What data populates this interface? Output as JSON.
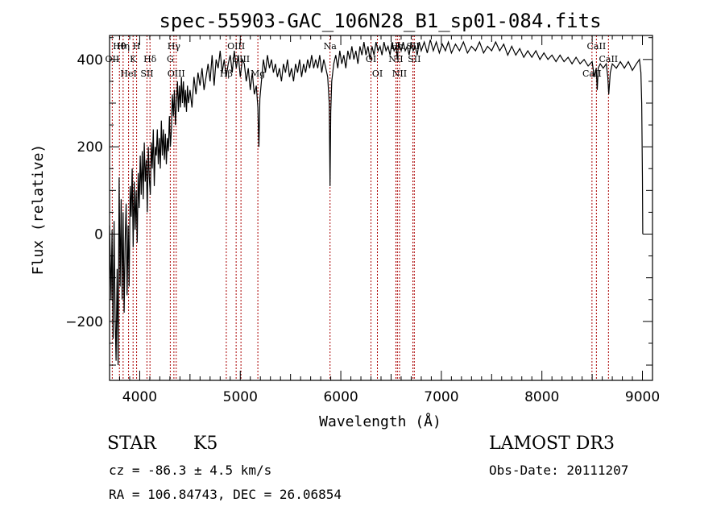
{
  "chart_data": {
    "type": "line",
    "title": "spec-55903-GAC_106N28_B1_sp01-084.fits",
    "xlabel": "Wavelength (Å)",
    "ylabel": "Flux (relative)",
    "xlim": [
      3700,
      9100
    ],
    "ylim": [
      -335,
      455
    ],
    "xticks": [
      4000,
      5000,
      6000,
      7000,
      8000,
      9000
    ],
    "yticks": [
      -200,
      0,
      200,
      400
    ],
    "line_color": "#000000",
    "marker_color": "#aa0000",
    "series": [
      {
        "name": "flux",
        "points": [
          [
            3700,
            20
          ],
          [
            3715,
            -150
          ],
          [
            3725,
            10
          ],
          [
            3735,
            -240
          ],
          [
            3745,
            30
          ],
          [
            3755,
            -190
          ],
          [
            3765,
            -290
          ],
          [
            3775,
            -80
          ],
          [
            3785,
            -300
          ],
          [
            3795,
            130
          ],
          [
            3805,
            -120
          ],
          [
            3815,
            80
          ],
          [
            3825,
            -150
          ],
          [
            3835,
            50
          ],
          [
            3845,
            -180
          ],
          [
            3855,
            -20
          ],
          [
            3865,
            70
          ],
          [
            3875,
            -140
          ],
          [
            3885,
            20
          ],
          [
            3895,
            -120
          ],
          [
            3905,
            110
          ],
          [
            3915,
            40
          ],
          [
            3925,
            150
          ],
          [
            3935,
            -30
          ],
          [
            3945,
            120
          ],
          [
            3955,
            10
          ],
          [
            3965,
            100
          ],
          [
            3975,
            -20
          ],
          [
            3985,
            140
          ],
          [
            3995,
            60
          ],
          [
            4005,
            180
          ],
          [
            4015,
            90
          ],
          [
            4025,
            190
          ],
          [
            4035,
            80
          ],
          [
            4045,
            210
          ],
          [
            4055,
            120
          ],
          [
            4065,
            170
          ],
          [
            4075,
            50
          ],
          [
            4085,
            200
          ],
          [
            4095,
            130
          ],
          [
            4105,
            90
          ],
          [
            4115,
            210
          ],
          [
            4125,
            150
          ],
          [
            4135,
            240
          ],
          [
            4145,
            110
          ],
          [
            4155,
            200
          ],
          [
            4165,
            180
          ],
          [
            4175,
            240
          ],
          [
            4185,
            160
          ],
          [
            4195,
            220
          ],
          [
            4205,
            150
          ],
          [
            4215,
            260
          ],
          [
            4225,
            180
          ],
          [
            4235,
            240
          ],
          [
            4245,
            170
          ],
          [
            4255,
            230
          ],
          [
            4265,
            160
          ],
          [
            4275,
            220
          ],
          [
            4285,
            190
          ],
          [
            4295,
            270
          ],
          [
            4305,
            200
          ],
          [
            4315,
            240
          ],
          [
            4325,
            320
          ],
          [
            4335,
            270
          ],
          [
            4345,
            330
          ],
          [
            4355,
            250
          ],
          [
            4365,
            300
          ],
          [
            4375,
            350
          ],
          [
            4385,
            280
          ],
          [
            4395,
            340
          ],
          [
            4405,
            290
          ],
          [
            4415,
            360
          ],
          [
            4425,
            300
          ],
          [
            4435,
            350
          ],
          [
            4445,
            290
          ],
          [
            4455,
            330
          ],
          [
            4465,
            280
          ],
          [
            4475,
            340
          ],
          [
            4485,
            300
          ],
          [
            4500,
            330
          ],
          [
            4520,
            290
          ],
          [
            4540,
            360
          ],
          [
            4560,
            320
          ],
          [
            4580,
            370
          ],
          [
            4600,
            340
          ],
          [
            4620,
            380
          ],
          [
            4640,
            330
          ],
          [
            4660,
            360
          ],
          [
            4680,
            390
          ],
          [
            4700,
            350
          ],
          [
            4720,
            410
          ],
          [
            4740,
            340
          ],
          [
            4760,
            400
          ],
          [
            4780,
            380
          ],
          [
            4800,
            420
          ],
          [
            4820,
            370
          ],
          [
            4840,
            400
          ],
          [
            4860,
            360
          ],
          [
            4880,
            390
          ],
          [
            4900,
            410
          ],
          [
            4920,
            370
          ],
          [
            4940,
            420
          ],
          [
            4960,
            380
          ],
          [
            4980,
            410
          ],
          [
            5000,
            360
          ],
          [
            5020,
            400
          ],
          [
            5040,
            390
          ],
          [
            5060,
            350
          ],
          [
            5080,
            380
          ],
          [
            5100,
            330
          ],
          [
            5120,
            370
          ],
          [
            5140,
            320
          ],
          [
            5160,
            340
          ],
          [
            5175,
            290
          ],
          [
            5185,
            200
          ],
          [
            5195,
            310
          ],
          [
            5210,
            350
          ],
          [
            5230,
            400
          ],
          [
            5250,
            370
          ],
          [
            5270,
            410
          ],
          [
            5290,
            380
          ],
          [
            5310,
            400
          ],
          [
            5330,
            370
          ],
          [
            5350,
            390
          ],
          [
            5370,
            360
          ],
          [
            5390,
            380
          ],
          [
            5410,
            350
          ],
          [
            5430,
            390
          ],
          [
            5450,
            370
          ],
          [
            5470,
            400
          ],
          [
            5490,
            360
          ],
          [
            5510,
            380
          ],
          [
            5530,
            350
          ],
          [
            5550,
            390
          ],
          [
            5570,
            370
          ],
          [
            5590,
            400
          ],
          [
            5610,
            360
          ],
          [
            5630,
            390
          ],
          [
            5650,
            370
          ],
          [
            5670,
            400
          ],
          [
            5690,
            380
          ],
          [
            5710,
            410
          ],
          [
            5730,
            380
          ],
          [
            5750,
            400
          ],
          [
            5770,
            380
          ],
          [
            5790,
            410
          ],
          [
            5810,
            370
          ],
          [
            5830,
            400
          ],
          [
            5850,
            380
          ],
          [
            5870,
            360
          ],
          [
            5885,
            300
          ],
          [
            5893,
            110
          ],
          [
            5900,
            280
          ],
          [
            5910,
            350
          ],
          [
            5930,
            390
          ],
          [
            5950,
            410
          ],
          [
            5970,
            380
          ],
          [
            5990,
            420
          ],
          [
            6010,
            390
          ],
          [
            6030,
            410
          ],
          [
            6050,
            380
          ],
          [
            6070,
            420
          ],
          [
            6090,
            400
          ],
          [
            6110,
            430
          ],
          [
            6130,
            400
          ],
          [
            6150,
            420
          ],
          [
            6170,
            390
          ],
          [
            6190,
            430
          ],
          [
            6210,
            410
          ],
          [
            6230,
            440
          ],
          [
            6250,
            410
          ],
          [
            6270,
            430
          ],
          [
            6290,
            400
          ],
          [
            6310,
            430
          ],
          [
            6330,
            410
          ],
          [
            6350,
            440
          ],
          [
            6370,
            420
          ],
          [
            6390,
            430
          ],
          [
            6410,
            410
          ],
          [
            6430,
            440
          ],
          [
            6450,
            420
          ],
          [
            6470,
            430
          ],
          [
            6490,
            410
          ],
          [
            6510,
            440
          ],
          [
            6530,
            420
          ],
          [
            6550,
            430
          ],
          [
            6563,
            400
          ],
          [
            6575,
            440
          ],
          [
            6600,
            420
          ],
          [
            6620,
            440
          ],
          [
            6640,
            420
          ],
          [
            6660,
            430
          ],
          [
            6680,
            410
          ],
          [
            6700,
            440
          ],
          [
            6720,
            420
          ],
          [
            6740,
            430
          ],
          [
            6760,
            410
          ],
          [
            6780,
            440
          ],
          [
            6800,
            420
          ],
          [
            6830,
            440
          ],
          [
            6860,
            415
          ],
          [
            6890,
            445
          ],
          [
            6920,
            420
          ],
          [
            6950,
            440
          ],
          [
            6980,
            415
          ],
          [
            7010,
            435
          ],
          [
            7040,
            420
          ],
          [
            7070,
            440
          ],
          [
            7100,
            415
          ],
          [
            7140,
            435
          ],
          [
            7180,
            420
          ],
          [
            7220,
            440
          ],
          [
            7260,
            415
          ],
          [
            7300,
            430
          ],
          [
            7340,
            420
          ],
          [
            7380,
            440
          ],
          [
            7420,
            415
          ],
          [
            7460,
            430
          ],
          [
            7500,
            420
          ],
          [
            7540,
            440
          ],
          [
            7580,
            420
          ],
          [
            7620,
            435
          ],
          [
            7660,
            410
          ],
          [
            7700,
            430
          ],
          [
            7740,
            410
          ],
          [
            7780,
            425
          ],
          [
            7820,
            405
          ],
          [
            7860,
            420
          ],
          [
            7900,
            405
          ],
          [
            7940,
            420
          ],
          [
            7980,
            400
          ],
          [
            8020,
            415
          ],
          [
            8060,
            400
          ],
          [
            8100,
            410
          ],
          [
            8140,
            395
          ],
          [
            8180,
            410
          ],
          [
            8220,
            395
          ],
          [
            8260,
            405
          ],
          [
            8300,
            390
          ],
          [
            8340,
            405
          ],
          [
            8380,
            390
          ],
          [
            8420,
            400
          ],
          [
            8460,
            385
          ],
          [
            8500,
            395
          ],
          [
            8520,
            360
          ],
          [
            8540,
            380
          ],
          [
            8550,
            330
          ],
          [
            8560,
            380
          ],
          [
            8580,
            390
          ],
          [
            8610,
            380
          ],
          [
            8640,
            390
          ],
          [
            8655,
            360
          ],
          [
            8665,
            320
          ],
          [
            8680,
            370
          ],
          [
            8700,
            390
          ],
          [
            8740,
            380
          ],
          [
            8780,
            395
          ],
          [
            8820,
            380
          ],
          [
            8860,
            395
          ],
          [
            8900,
            375
          ],
          [
            8940,
            390
          ],
          [
            8970,
            400
          ],
          [
            8985,
            370
          ],
          [
            8993,
            300
          ],
          [
            9000,
            130
          ],
          [
            9003,
            0
          ]
        ]
      }
    ],
    "spectral_lines": [
      {
        "label": "Hθ",
        "wavelength": 3798
      },
      {
        "label": "OII",
        "wavelength": 3727
      },
      {
        "label": "HeI",
        "wavelength": 3889
      },
      {
        "label": "Hη",
        "wavelength": 3835
      },
      {
        "label": "K",
        "wavelength": 3934
      },
      {
        "label": "SII",
        "wavelength": 4072
      },
      {
        "label": "H",
        "wavelength": 3969
      },
      {
        "label": "Hδ",
        "wavelength": 4102
      },
      {
        "label": "OIII",
        "wavelength": 4363
      },
      {
        "label": "Hγ",
        "wavelength": 4340
      },
      {
        "label": "G",
        "wavelength": 4304
      },
      {
        "label": "Hβ",
        "wavelength": 4861
      },
      {
        "label": "OIII",
        "wavelength": 4959
      },
      {
        "label": "OIII",
        "wavelength": 5007
      },
      {
        "label": "Mg",
        "wavelength": 5175
      },
      {
        "label": "Na",
        "wavelength": 5893
      },
      {
        "label": "OI",
        "wavelength": 6300
      },
      {
        "label": "OI",
        "wavelength": 6364
      },
      {
        "label": "Hα",
        "wavelength": 6563
      },
      {
        "label": "NII",
        "wavelength": 6548
      },
      {
        "label": "NII",
        "wavelength": 6584
      },
      {
        "label": "SII",
        "wavelength": 6717
      },
      {
        "label": "SII",
        "wavelength": 6731
      },
      {
        "label": "CaII",
        "wavelength": 8498
      },
      {
        "label": "CaII",
        "wavelength": 8542
      },
      {
        "label": "CaII",
        "wavelength": 8662
      }
    ]
  },
  "info": {
    "class": "STAR",
    "subclass": "K5",
    "survey": "LAMOST DR3",
    "cz": "cz = -86.3 ± 4.5 km/s",
    "obs_date": "Obs-Date: 20111207",
    "radec": "RA = 106.84743, DEC =  26.06854"
  }
}
